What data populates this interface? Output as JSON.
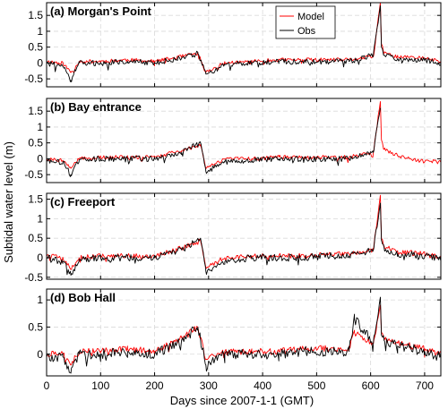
{
  "chart_data": {
    "type": "line",
    "xlabel": "Days since 2007-1-1 (GMT)",
    "ylabel": "Subtidal water level (m)",
    "xlim": [
      0,
      730
    ],
    "xticks": [
      0,
      100,
      200,
      300,
      400,
      500,
      600,
      700
    ],
    "grid": true,
    "legend": {
      "placement": "top-center",
      "entries": [
        "Model",
        "Obs"
      ]
    },
    "colors": {
      "Model": "#ff0000",
      "Obs": "#000000",
      "grid": "#d9d9d9"
    },
    "panels": [
      {
        "title": "(a) Morgan's Point",
        "ylim": [
          -0.75,
          1.9
        ],
        "yticks": [
          -0.5,
          0,
          0.5,
          1,
          1.5
        ],
        "ytick_labels": [
          "-0.5",
          "0",
          "0.5",
          "1",
          "1.5"
        ],
        "series": [
          {
            "name": "Model",
            "x": [
              0,
              30,
              45,
              60,
              100,
              150,
              200,
              250,
              280,
              295,
              330,
              380,
              430,
              480,
              520,
              560,
              605,
              618,
              620,
              625,
              650,
              700,
              730
            ],
            "y": [
              0.05,
              0.0,
              -0.3,
              0.05,
              0.05,
              0.1,
              0.05,
              0.2,
              0.3,
              -0.3,
              0.0,
              0.05,
              0.1,
              0.1,
              0.1,
              0.1,
              0.2,
              1.9,
              0.6,
              0.3,
              0.2,
              0.15,
              0.05
            ]
          },
          {
            "name": "Obs",
            "x": [
              0,
              30,
              45,
              60,
              100,
              150,
              200,
              250,
              280,
              295,
              330,
              380,
              430,
              480,
              520,
              560,
              605,
              618,
              620,
              625,
              650,
              700,
              730
            ],
            "y": [
              0.0,
              -0.1,
              -0.55,
              0.0,
              0.0,
              0.05,
              0.0,
              0.15,
              0.3,
              -0.35,
              -0.05,
              0.0,
              0.05,
              0.05,
              0.05,
              0.05,
              0.25,
              1.8,
              0.5,
              0.25,
              0.15,
              0.1,
              0.0
            ]
          }
        ]
      },
      {
        "title": "(b) Bay entrance",
        "ylim": [
          -0.75,
          1.9
        ],
        "yticks": [
          -0.5,
          0,
          0.5,
          1,
          1.5
        ],
        "ytick_labels": [
          "-0.5",
          "0",
          "0.5",
          "1",
          "1.5"
        ],
        "series": [
          {
            "name": "Model",
            "x": [
              0,
              30,
              45,
              60,
              100,
              150,
              200,
              250,
              285,
              295,
              330,
              380,
              430,
              480,
              520,
              560,
              605,
              618,
              620,
              625,
              650,
              700,
              730
            ],
            "y": [
              0.0,
              -0.05,
              -0.3,
              0.0,
              0.05,
              0.05,
              0.05,
              0.25,
              0.45,
              -0.3,
              0.0,
              0.0,
              0.05,
              0.05,
              0.05,
              0.05,
              0.2,
              1.8,
              0.6,
              0.3,
              0.1,
              -0.1,
              -0.05
            ]
          },
          {
            "name": "Obs",
            "x": [
              0,
              30,
              45,
              60,
              100,
              150,
              200,
              250,
              285,
              295,
              330,
              380,
              430,
              480,
              520,
              560,
              605,
              618
            ],
            "y": [
              -0.05,
              -0.1,
              -0.5,
              -0.05,
              0.0,
              0.0,
              0.0,
              0.2,
              0.5,
              -0.4,
              -0.1,
              -0.05,
              0.0,
              0.0,
              0.0,
              0.0,
              0.2,
              1.6
            ]
          }
        ]
      },
      {
        "title": "(c) Freeport",
        "ylim": [
          -0.55,
          1.65
        ],
        "yticks": [
          -0.5,
          0,
          0.5,
          1,
          1.5
        ],
        "ytick_labels": [
          "-0.5",
          "0",
          "0.5",
          "1",
          "1.5"
        ],
        "series": [
          {
            "name": "Model",
            "x": [
              0,
              30,
              45,
              60,
              100,
              150,
              200,
              250,
              285,
              295,
              330,
              380,
              430,
              480,
              520,
              560,
              605,
              618,
              620,
              625,
              650,
              700,
              730
            ],
            "y": [
              0.05,
              0.0,
              -0.3,
              0.0,
              0.05,
              0.05,
              0.05,
              0.25,
              0.45,
              -0.25,
              0.0,
              0.05,
              0.05,
              0.05,
              0.1,
              0.1,
              0.2,
              1.6,
              0.5,
              0.3,
              0.15,
              0.1,
              0.0
            ]
          },
          {
            "name": "Obs",
            "x": [
              0,
              30,
              45,
              60,
              100,
              150,
              200,
              250,
              285,
              295,
              330,
              380,
              430,
              480,
              520,
              560,
              605,
              618,
              620,
              625,
              650,
              700,
              730
            ],
            "y": [
              0.0,
              -0.1,
              -0.45,
              -0.05,
              0.0,
              0.0,
              0.0,
              0.2,
              0.5,
              -0.35,
              -0.1,
              0.0,
              0.0,
              0.0,
              0.05,
              0.05,
              0.2,
              1.4,
              0.45,
              0.25,
              0.1,
              0.05,
              -0.05
            ]
          }
        ]
      },
      {
        "title": "(d) Bob Hall",
        "ylim": [
          -0.4,
          1.2
        ],
        "yticks": [
          0,
          0.5,
          1
        ],
        "ytick_labels": [
          "0",
          "0.5",
          "1"
        ],
        "series": [
          {
            "name": "Model",
            "x": [
              0,
              30,
              45,
              60,
              100,
              150,
              200,
              250,
              280,
              295,
              330,
              380,
              430,
              480,
              520,
              560,
              570,
              605,
              618,
              620,
              625,
              650,
              700,
              730
            ],
            "y": [
              0.0,
              0.0,
              -0.2,
              0.05,
              0.05,
              0.1,
              0.05,
              0.3,
              0.5,
              -0.1,
              0.05,
              0.05,
              0.05,
              0.1,
              0.1,
              0.1,
              0.4,
              0.2,
              0.9,
              0.4,
              0.3,
              0.2,
              0.1,
              0.0
            ]
          },
          {
            "name": "Obs",
            "x": [
              0,
              30,
              45,
              60,
              100,
              150,
              200,
              250,
              280,
              295,
              330,
              380,
              430,
              480,
              520,
              560,
              570,
              605,
              618,
              620,
              625,
              650,
              700,
              730
            ],
            "y": [
              -0.05,
              -0.05,
              -0.35,
              0.0,
              0.0,
              0.05,
              0.0,
              0.25,
              0.5,
              -0.2,
              0.0,
              0.0,
              0.0,
              0.05,
              0.05,
              0.05,
              0.65,
              0.2,
              1.05,
              0.35,
              0.25,
              0.15,
              0.05,
              -0.05
            ]
          }
        ]
      }
    ]
  }
}
